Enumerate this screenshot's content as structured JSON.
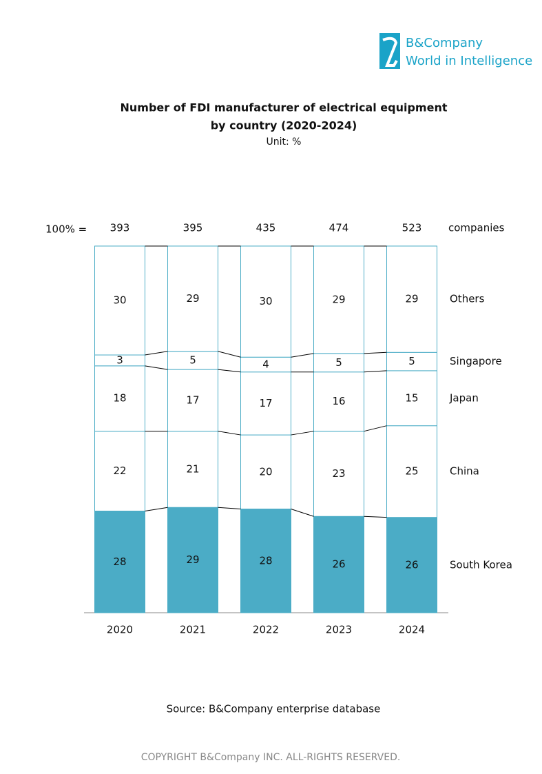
{
  "brand": {
    "name": "B&Company",
    "tagline": "World in Intelligence"
  },
  "chart_data": {
    "type": "stacked_bar_100",
    "title": [
      "Number of FDI manufacturer of electrical equipment",
      "by country (2020-2024)"
    ],
    "subtitle": "Unit: %",
    "totals_label": "100% =",
    "totals": [
      393,
      395,
      435,
      474,
      523
    ],
    "totals_unit": "companies",
    "categories": [
      "2020",
      "2021",
      "2022",
      "2023",
      "2024"
    ],
    "series": [
      {
        "name": "South Korea",
        "color": "#4bacc6",
        "values": [
          28,
          29,
          28,
          26,
          26
        ]
      },
      {
        "name": "China",
        "color": "#ffffff",
        "values": [
          22,
          21,
          20,
          23,
          25
        ]
      },
      {
        "name": "Japan",
        "color": "#ffffff",
        "values": [
          18,
          17,
          17,
          16,
          15
        ]
      },
      {
        "name": "Singapore",
        "color": "#ffffff",
        "values": [
          3,
          5,
          4,
          5,
          5
        ]
      },
      {
        "name": "Others",
        "color": "#ffffff",
        "values": [
          30,
          29,
          30,
          29,
          29
        ]
      }
    ],
    "source": "Source: B&Company enterprise database"
  },
  "footer": "COPYRIGHT B&Company INC. ALL-RIGHTS RESERVED."
}
